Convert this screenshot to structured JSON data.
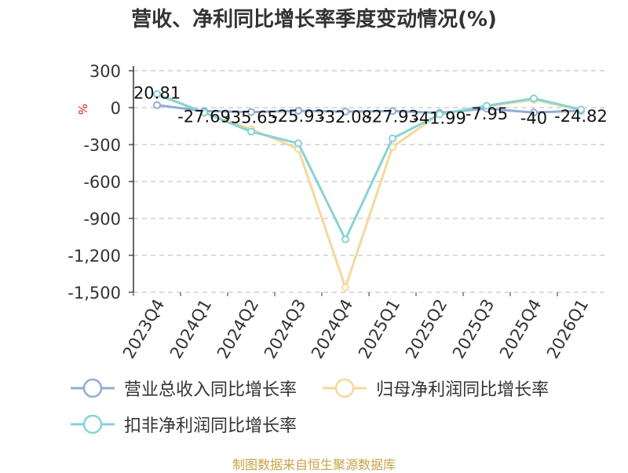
{
  "title": "营收、净利同比增长率季度变动情况(%)",
  "source": "制图数据来自恒生聚源数据库",
  "colors": {
    "series": [
      "#93acd6",
      "#f7d79b",
      "#86d3d6"
    ],
    "grid": "#c8c8c8",
    "axis": "#333333",
    "unit": "#d21f1f",
    "title": "#333333",
    "source": "#c9a248"
  },
  "chart_data": {
    "type": "line",
    "title": "营收、净利同比增长率季度变动情况(%)",
    "categories": [
      "2023Q4",
      "2024Q1",
      "2024Q2",
      "2024Q3",
      "2024Q4",
      "2025Q1",
      "2025Q2",
      "2025Q3",
      "2025Q4",
      "2026Q1"
    ],
    "ylabel": "%",
    "ylim": [
      -1500,
      300
    ],
    "yticks": [
      300,
      0,
      -300,
      -600,
      -900,
      -1200,
      -1500
    ],
    "ytick_labels": [
      "300",
      "0",
      "-300",
      "-600",
      "-900",
      "-1,200",
      "-1,500"
    ],
    "grid": true,
    "legend_position": "bottom",
    "series": [
      {
        "name": "营业总收入同比增长率",
        "values": [
          20.81,
          -27.69,
          -35.65,
          -25.93,
          -32.08,
          -27.93,
          -41.99,
          -7.95,
          -40,
          -24.82
        ],
        "labels": [
          "20.81",
          "-27.69",
          "-35.65",
          "-25.93",
          "-32.08",
          "-27.93",
          "-41.99",
          "-7.95",
          "-40",
          "-24.82"
        ]
      },
      {
        "name": "归母净利润同比增长率",
        "values": [
          105,
          -40,
          -175,
          -335,
          -1460,
          -320,
          -50,
          10,
          65,
          -20
        ]
      },
      {
        "name": "扣非净利润同比增长率",
        "values": [
          110,
          -40,
          -195,
          -290,
          -1070,
          -250,
          -55,
          15,
          75,
          -15
        ]
      }
    ]
  }
}
